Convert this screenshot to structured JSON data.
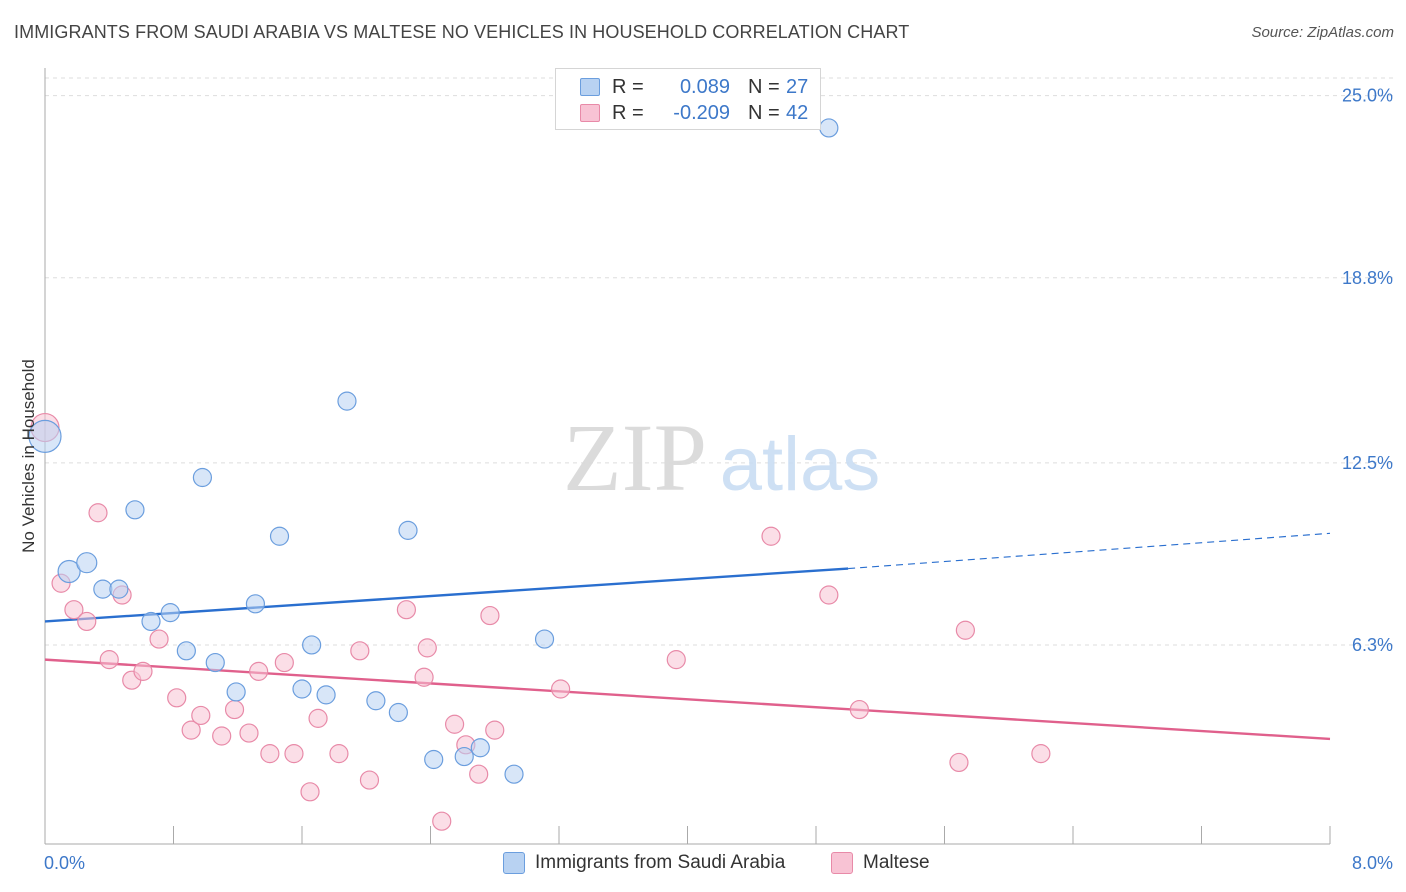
{
  "title": "IMMIGRANTS FROM SAUDI ARABIA VS MALTESE NO VEHICLES IN HOUSEHOLD CORRELATION CHART",
  "source": "Source: ZipAtlas.com",
  "watermark": {
    "zip": "ZIP",
    "atlas": "atlas"
  },
  "legend": {
    "rows": [
      {
        "r_label": "R =",
        "r_value": "0.089",
        "n_label": "N =",
        "n_value": "27"
      },
      {
        "r_label": "R =",
        "r_value": "-0.209",
        "n_label": "N =",
        "n_value": "42"
      }
    ]
  },
  "colors": {
    "blue_fill": "#b8d2f2",
    "blue_stroke": "#6b9ede",
    "blue_line": "#2a6fcf",
    "pink_fill": "#f8c3d4",
    "pink_stroke": "#e88aa8",
    "pink_line": "#e0608c",
    "tick_text": "#3d78c9",
    "grid": "#dddddd"
  },
  "chart_data": {
    "type": "scatter",
    "title": "IMMIGRANTS FROM SAUDI ARABIA VS MALTESE NO VEHICLES IN HOUSEHOLD CORRELATION CHART",
    "xlabel": "",
    "ylabel": "No Vehicles in Household",
    "xlim": [
      0.0,
      8.0
    ],
    "ylim": [
      0.0,
      25.6
    ],
    "x_tick_labels": [
      "0.0%",
      "8.0%"
    ],
    "y_ticks": [
      6.3,
      12.5,
      18.8,
      25.0
    ],
    "y_tick_labels": [
      "6.3%",
      "12.5%",
      "18.8%",
      "25.0%"
    ],
    "grid": true,
    "legend_position": "top-center",
    "series": [
      {
        "name": "Immigrants from Saudi Arabia",
        "color": "#b8d2f2",
        "points": [
          [
            0.0,
            13.4,
            16
          ],
          [
            0.15,
            8.8,
            11
          ],
          [
            0.26,
            9.1,
            10
          ],
          [
            0.36,
            8.2,
            9
          ],
          [
            0.46,
            8.2,
            9
          ],
          [
            0.56,
            10.9,
            9
          ],
          [
            0.66,
            7.1,
            9
          ],
          [
            0.78,
            7.4,
            9
          ],
          [
            0.88,
            6.1,
            9
          ],
          [
            0.98,
            12.0,
            9
          ],
          [
            1.06,
            5.7,
            9
          ],
          [
            1.19,
            4.7,
            9
          ],
          [
            1.31,
            7.7,
            9
          ],
          [
            1.46,
            10.0,
            9
          ],
          [
            1.6,
            4.8,
            9
          ],
          [
            1.66,
            6.3,
            9
          ],
          [
            1.75,
            4.6,
            9
          ],
          [
            1.88,
            14.6,
            9
          ],
          [
            2.06,
            4.4,
            9
          ],
          [
            2.2,
            4.0,
            9
          ],
          [
            2.26,
            10.2,
            9
          ],
          [
            2.42,
            2.4,
            9
          ],
          [
            2.61,
            2.5,
            9
          ],
          [
            2.71,
            2.8,
            9
          ],
          [
            2.92,
            1.9,
            9
          ],
          [
            3.11,
            6.5,
            9
          ],
          [
            4.88,
            23.9,
            9
          ]
        ]
      },
      {
        "name": "Maltese",
        "color": "#f8c3d4",
        "points": [
          [
            0.0,
            13.7,
            14
          ],
          [
            0.1,
            8.4,
            9
          ],
          [
            0.18,
            7.5,
            9
          ],
          [
            0.26,
            7.1,
            9
          ],
          [
            0.33,
            10.8,
            9
          ],
          [
            0.4,
            5.8,
            9
          ],
          [
            0.48,
            8.0,
            9
          ],
          [
            0.54,
            5.1,
            9
          ],
          [
            0.61,
            5.4,
            9
          ],
          [
            0.71,
            6.5,
            9
          ],
          [
            0.82,
            4.5,
            9
          ],
          [
            0.91,
            3.4,
            9
          ],
          [
            0.97,
            3.9,
            9
          ],
          [
            1.1,
            3.2,
            9
          ],
          [
            1.18,
            4.1,
            9
          ],
          [
            1.27,
            3.3,
            9
          ],
          [
            1.33,
            5.4,
            9
          ],
          [
            1.4,
            2.6,
            9
          ],
          [
            1.49,
            5.7,
            9
          ],
          [
            1.55,
            2.6,
            9
          ],
          [
            1.65,
            1.3,
            9
          ],
          [
            1.7,
            3.8,
            9
          ],
          [
            1.83,
            2.6,
            9
          ],
          [
            1.96,
            6.1,
            9
          ],
          [
            2.02,
            1.7,
            9
          ],
          [
            2.25,
            7.5,
            9
          ],
          [
            2.36,
            5.2,
            9
          ],
          [
            2.38,
            6.2,
            9
          ],
          [
            2.47,
            0.3,
            9
          ],
          [
            2.55,
            3.6,
            9
          ],
          [
            2.62,
            2.9,
            9
          ],
          [
            2.7,
            1.9,
            9
          ],
          [
            2.8,
            3.4,
            9
          ],
          [
            2.77,
            7.3,
            9
          ],
          [
            3.21,
            4.8,
            9
          ],
          [
            3.93,
            5.8,
            9
          ],
          [
            4.52,
            10.0,
            9
          ],
          [
            4.88,
            8.0,
            9
          ],
          [
            5.07,
            4.1,
            9
          ],
          [
            5.69,
            2.3,
            9
          ],
          [
            5.73,
            6.8,
            9
          ],
          [
            6.2,
            2.6,
            9
          ]
        ]
      }
    ],
    "trend_lines": [
      {
        "series": "Immigrants from Saudi Arabia",
        "solid": [
          [
            0.0,
            7.1
          ],
          [
            5.0,
            8.9
          ]
        ],
        "dashed": [
          [
            5.0,
            8.9
          ],
          [
            8.0,
            10.1
          ]
        ]
      },
      {
        "series": "Maltese",
        "solid": [
          [
            0.0,
            5.8
          ],
          [
            8.0,
            3.1
          ]
        ]
      }
    ]
  }
}
